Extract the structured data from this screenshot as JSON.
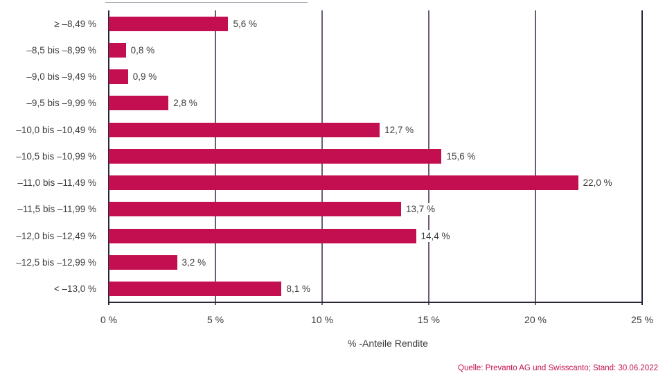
{
  "chart_data": {
    "type": "bar",
    "orientation": "horizontal",
    "xlabel": "% -Anteile Rendite",
    "x_ticks": [
      "0 %",
      "5 %",
      "10 %",
      "15 %",
      "20 %",
      "25 %"
    ],
    "xlim": [
      0,
      25
    ],
    "grid": true,
    "gridline_step": 5,
    "categories": [
      "≥ –8,49 %",
      "–8,5 bis –8,99 %",
      "–9,0 bis –9,49 %",
      "–9,5 bis –9,99 %",
      "–10,0 bis –10,49 %",
      "–10,5 bis –10,99 %",
      "–11,0 bis –11,49 %",
      "–11,5 bis –11,99 %",
      "–12,0 bis –12,49 %",
      "–12,5 bis –12,99 %",
      "< –13,0 %"
    ],
    "values": [
      5.6,
      0.8,
      0.9,
      2.8,
      12.7,
      15.6,
      22.0,
      13.7,
      14.4,
      3.2,
      8.1
    ],
    "value_labels": [
      "5,6 %",
      "0,8 %",
      "0,9 %",
      "2,8 %",
      "12,7 %",
      "15,6 %",
      "22,0 %",
      "13,7 %",
      "14,4 %",
      "3,2 %",
      "8,1 %"
    ],
    "source": "Quelle: Prevanto AG und Swisscanto; Stand: 30.06.2022",
    "colors": {
      "bar": "#c30e50",
      "gridline": "#6b5c72",
      "axis": "#2b2539",
      "label_text": "#3c3c3b",
      "source_text": "#c30e50"
    },
    "legend_position": "none"
  }
}
